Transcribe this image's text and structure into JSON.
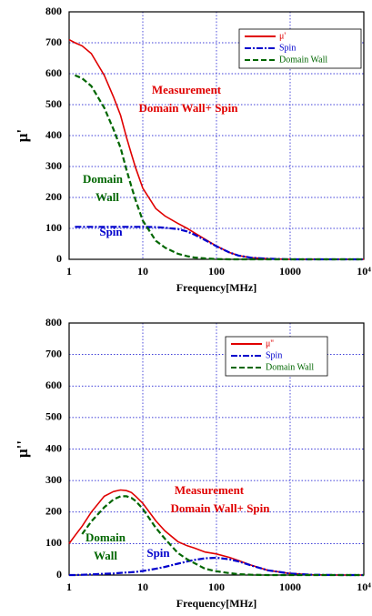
{
  "chart_data": [
    {
      "type": "line",
      "x_label": "Frequency[MHz]",
      "y_label": "μ'",
      "log_x": true,
      "grid": true,
      "legend": "upper right",
      "xlim": [
        1,
        10000
      ],
      "xticks": [
        1,
        10,
        100,
        1000,
        {
          "value": 10000,
          "label": "10⁴"
        }
      ],
      "ylim": [
        0,
        800
      ],
      "yticks": [
        0,
        100,
        200,
        300,
        400,
        500,
        600,
        700,
        800
      ],
      "x": [
        1,
        1.2,
        1.5,
        2,
        3,
        4,
        5,
        6,
        7,
        8,
        10,
        15,
        20,
        30,
        40,
        50,
        70,
        100,
        150,
        200,
        300,
        500,
        1000,
        2000,
        5000,
        10000
      ],
      "series": [
        {
          "name": "μ'",
          "color": "#e00000",
          "dash": "solid",
          "values": [
            710,
            700,
            690,
            665,
            595,
            525,
            465,
            395,
            340,
            295,
            230,
            164,
            140,
            116,
            100,
            86,
            65,
            43,
            22,
            12,
            5,
            2,
            0,
            0,
            0,
            0
          ]
        },
        {
          "name": "Spin",
          "color": "#0000cc",
          "dash": "dashdot",
          "values": [
            null,
            105,
            105,
            105,
            105,
            105,
            105,
            105,
            105,
            105,
            105,
            104,
            102,
            98,
            90,
            80,
            62,
            42,
            22,
            12,
            5,
            2,
            0,
            0,
            0,
            0
          ]
        },
        {
          "name": "Domain Wall",
          "color": "#006600",
          "dash": "dashed",
          "values": [
            null,
            595,
            585,
            560,
            490,
            420,
            360,
            290,
            235,
            190,
            125,
            60,
            38,
            18,
            10,
            6,
            3,
            1,
            0,
            0,
            0,
            0,
            0,
            0,
            0,
            0
          ]
        }
      ],
      "annotations": [
        "Measurement",
        "Domain Wall+ Spin",
        "Domain",
        "Wall",
        "Spin"
      ]
    },
    {
      "type": "line",
      "x_label": "Frequency[MHz]",
      "y_label": "μ''",
      "log_x": true,
      "grid": true,
      "legend": "upper right",
      "xlim": [
        1,
        10000
      ],
      "xticks": [
        1,
        10,
        100,
        1000,
        {
          "value": 10000,
          "label": "10⁴"
        }
      ],
      "ylim": [
        0,
        800
      ],
      "yticks": [
        0,
        100,
        200,
        300,
        400,
        500,
        600,
        700,
        800
      ],
      "x": [
        1,
        1.2,
        1.5,
        2,
        3,
        4,
        5,
        6,
        7,
        8,
        10,
        15,
        20,
        30,
        40,
        50,
        70,
        100,
        150,
        200,
        300,
        500,
        1000,
        2000,
        5000,
        10000
      ],
      "series": [
        {
          "name": "μ''",
          "color": "#e00000",
          "dash": "solid",
          "values": [
            100,
            125,
            155,
            200,
            250,
            265,
            270,
            268,
            262,
            250,
            228,
            172,
            140,
            106,
            93,
            86,
            73,
            67,
            56,
            46,
            31,
            15,
            5,
            1,
            0,
            0
          ]
        },
        {
          "name": "Spin",
          "color": "#0000cc",
          "dash": "dashdot",
          "values": [
            0,
            0,
            1,
            2,
            4,
            5,
            7,
            8,
            9,
            10,
            13,
            20,
            26,
            36,
            43,
            48,
            53,
            55,
            50,
            43,
            30,
            15,
            5,
            1,
            0,
            0
          ]
        },
        {
          "name": "Domain Wall",
          "color": "#006600",
          "dash": "dashed",
          "values": [
            null,
            null,
            130,
            170,
            215,
            240,
            250,
            250,
            245,
            235,
            210,
            150,
            115,
            70,
            50,
            38,
            20,
            12,
            6,
            3,
            1,
            0,
            0,
            0,
            0,
            0
          ]
        }
      ],
      "annotations": [
        "Measurement",
        "Domain Wall+ Spin",
        "Domain",
        "Wall",
        "Spin"
      ]
    }
  ]
}
